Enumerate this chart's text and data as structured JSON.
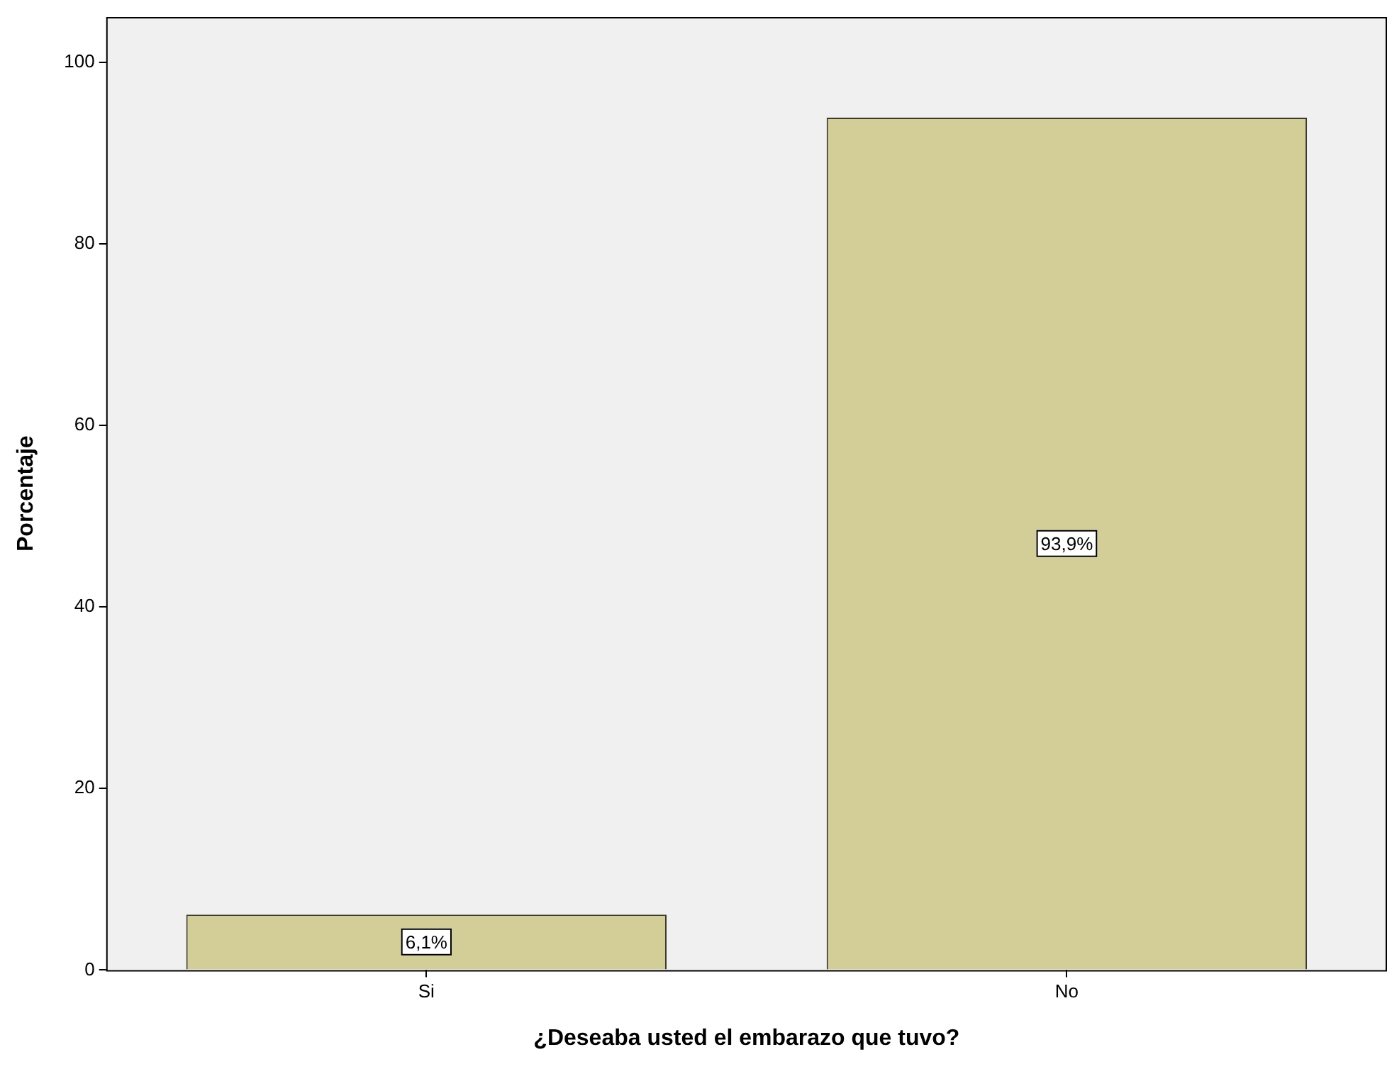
{
  "chart_data": {
    "type": "bar",
    "xlabel": "¿Deseaba usted el embarazo que tuvo?",
    "ylabel": "Porcentaje",
    "categories": [
      "Si",
      "No"
    ],
    "values": [
      6.1,
      93.9
    ],
    "value_labels": [
      "6,1%",
      "93,9%"
    ],
    "color": "#d3ce97",
    "ylim": [
      0,
      105
    ],
    "yticks": [
      0,
      20,
      40,
      60,
      80,
      100
    ],
    "grid": false,
    "legend": false
  }
}
